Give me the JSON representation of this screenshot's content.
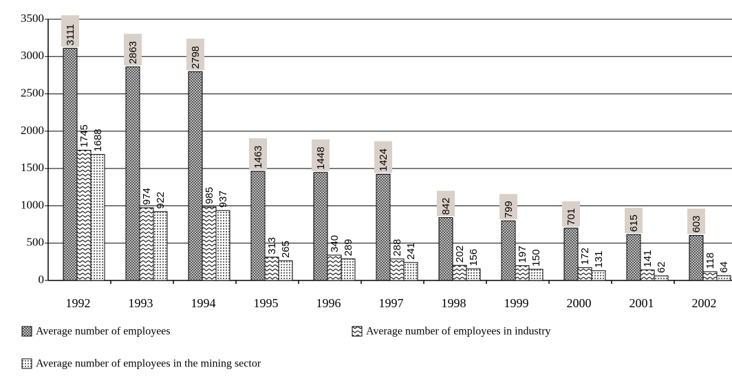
{
  "chart_data": {
    "type": "bar",
    "categories": [
      "1992",
      "1993",
      "1994",
      "1995",
      "1996",
      "1997",
      "1998",
      "1999",
      "2000",
      "2001",
      "2002"
    ],
    "series": [
      {
        "name": "Average number of employees",
        "color": "#555555",
        "values": [
          3111,
          2863,
          2798,
          1463,
          1448,
          1424,
          842,
          799,
          701,
          615,
          603
        ]
      },
      {
        "name": "Average number of employees in industry",
        "color": "#333333",
        "values": [
          1745,
          974,
          985,
          313,
          340,
          288,
          202,
          197,
          172,
          141,
          118
        ]
      },
      {
        "name": "Average number of employees in the mining sector",
        "color": "#666666",
        "values": [
          1688,
          922,
          937,
          265,
          289,
          241,
          156,
          150,
          131,
          62,
          64
        ]
      }
    ],
    "ylim": [
      0,
      3500
    ],
    "yticks": [
      0,
      500,
      1000,
      1500,
      2000,
      2500,
      3000,
      3500
    ],
    "grid": true
  }
}
